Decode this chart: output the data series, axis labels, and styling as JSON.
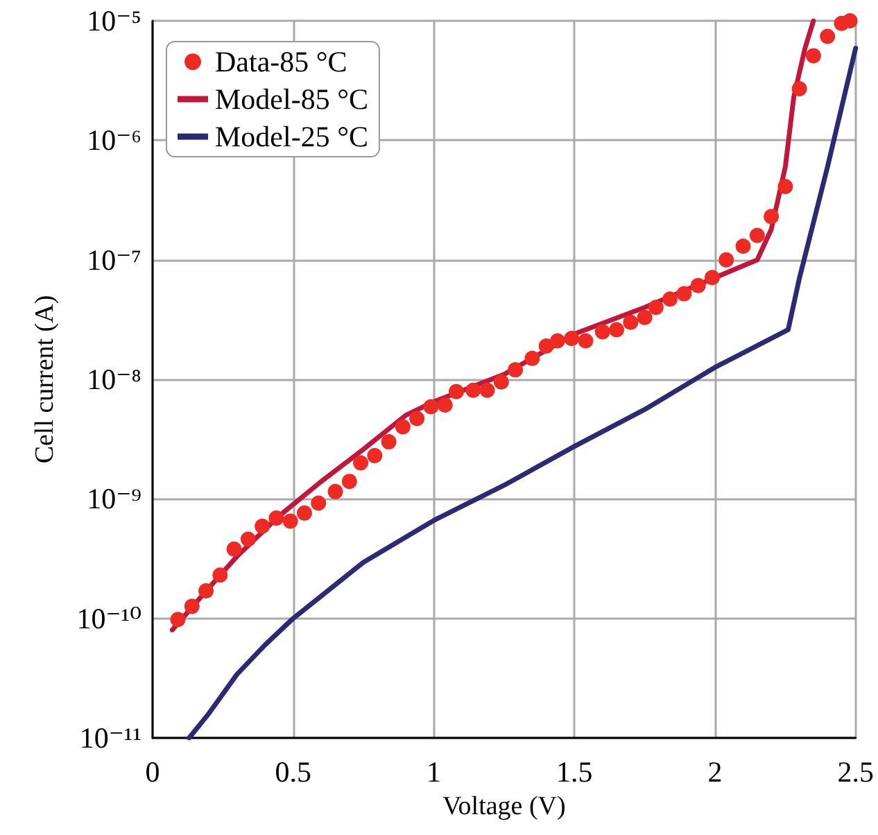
{
  "chart_data": {
    "type": "scatter",
    "xlabel": "Voltage (V)",
    "ylabel": "Cell current (A)",
    "xlim": [
      0,
      2.5
    ],
    "xticks": [
      0,
      0.5,
      1,
      1.5,
      2,
      2.5
    ],
    "ylim": [
      1e-11,
      1e-05
    ],
    "log": "y",
    "yticks": [
      {
        "value": 1e-11,
        "label": "10⁻¹¹"
      },
      {
        "value": 1e-10,
        "label": "10⁻¹⁰"
      },
      {
        "value": 1e-09,
        "label": "10⁻⁹"
      },
      {
        "value": 1e-08,
        "label": "10⁻⁸"
      },
      {
        "value": 1e-07,
        "label": "10⁻⁷"
      },
      {
        "value": 1e-06,
        "label": "10⁻⁶"
      },
      {
        "value": 1e-05,
        "label": "10⁻⁵"
      }
    ],
    "grid": true,
    "legend": "top left",
    "series": [
      {
        "name": "Data-85 °C",
        "marker": "circle",
        "color": "#ee2a24",
        "x": [
          0.09,
          0.14,
          0.19,
          0.24,
          0.29,
          0.34,
          0.39,
          0.44,
          0.49,
          0.54,
          0.59,
          0.65,
          0.7,
          0.74,
          0.79,
          0.84,
          0.89,
          0.94,
          0.99,
          1.04,
          1.08,
          1.14,
          1.19,
          1.24,
          1.29,
          1.35,
          1.4,
          1.44,
          1.49,
          1.54,
          1.6,
          1.65,
          1.7,
          1.75,
          1.79,
          1.84,
          1.89,
          1.94,
          1.99,
          2.04,
          2.1,
          2.15,
          2.2,
          2.25,
          2.3,
          2.35,
          2.4,
          2.45,
          2.48
        ],
        "values": [
          9.8e-11,
          1.26e-10,
          1.7e-10,
          2.3e-10,
          3.8e-10,
          4.6e-10,
          5.9e-10,
          6.9e-10,
          6.5e-10,
          7.6e-10,
          9.2e-10,
          1.15e-09,
          1.4e-09,
          2e-09,
          2.3e-09,
          3e-09,
          4e-09,
          4.7e-09,
          5.9e-09,
          6.1e-09,
          7.9e-09,
          8.1e-09,
          8.1e-09,
          9.5e-09,
          1.2e-08,
          1.5e-08,
          1.9e-08,
          2.1e-08,
          2.2e-08,
          2.1e-08,
          2.5e-08,
          2.6e-08,
          3e-08,
          3.3e-08,
          4e-08,
          4.7e-08,
          5.2e-08,
          6.1e-08,
          7.1e-08,
          1e-07,
          1.3e-07,
          1.6e-07,
          2.3e-07,
          4.1e-07,
          2.7e-06,
          5.1e-06,
          7.4e-06,
          9.5e-06,
          1e-05
        ]
      },
      {
        "name": "Model-85 °C",
        "type": "line",
        "marker": "none",
        "line_style": "solid",
        "color": "#c0183d",
        "x": [
          0.07,
          0.2,
          0.3,
          0.45,
          0.6,
          0.75,
          0.9,
          1.0,
          1.25,
          1.5,
          1.75,
          2.0,
          2.15,
          2.2,
          2.25,
          2.28,
          2.32,
          2.35
        ],
        "values": [
          8e-11,
          1.8e-10,
          3.3e-10,
          7.2e-10,
          1.4e-09,
          2.6e-09,
          5e-09,
          6.5e-09,
          1.1e-08,
          2.4e-08,
          4e-08,
          7.1e-08,
          1e-07,
          1.8e-07,
          6e-07,
          2.3e-06,
          5.9e-06,
          1e-05
        ]
      },
      {
        "name": "Model-25 °C",
        "type": "line",
        "marker": "none",
        "line_style": "solid",
        "color": "#2b2a72",
        "x": [
          0.13,
          0.2,
          0.3,
          0.4,
          0.5,
          0.75,
          1.0,
          1.25,
          1.5,
          1.75,
          2.0,
          2.26,
          2.3,
          2.4,
          2.5
        ],
        "values": [
          1e-11,
          1.6e-11,
          3.4e-11,
          6e-11,
          1e-10,
          2.95e-10,
          6.6e-10,
          1.3e-09,
          2.75e-09,
          5.6e-09,
          1.26e-08,
          2.6e-08,
          7e-08,
          6e-07,
          5.9e-06
        ]
      }
    ]
  }
}
